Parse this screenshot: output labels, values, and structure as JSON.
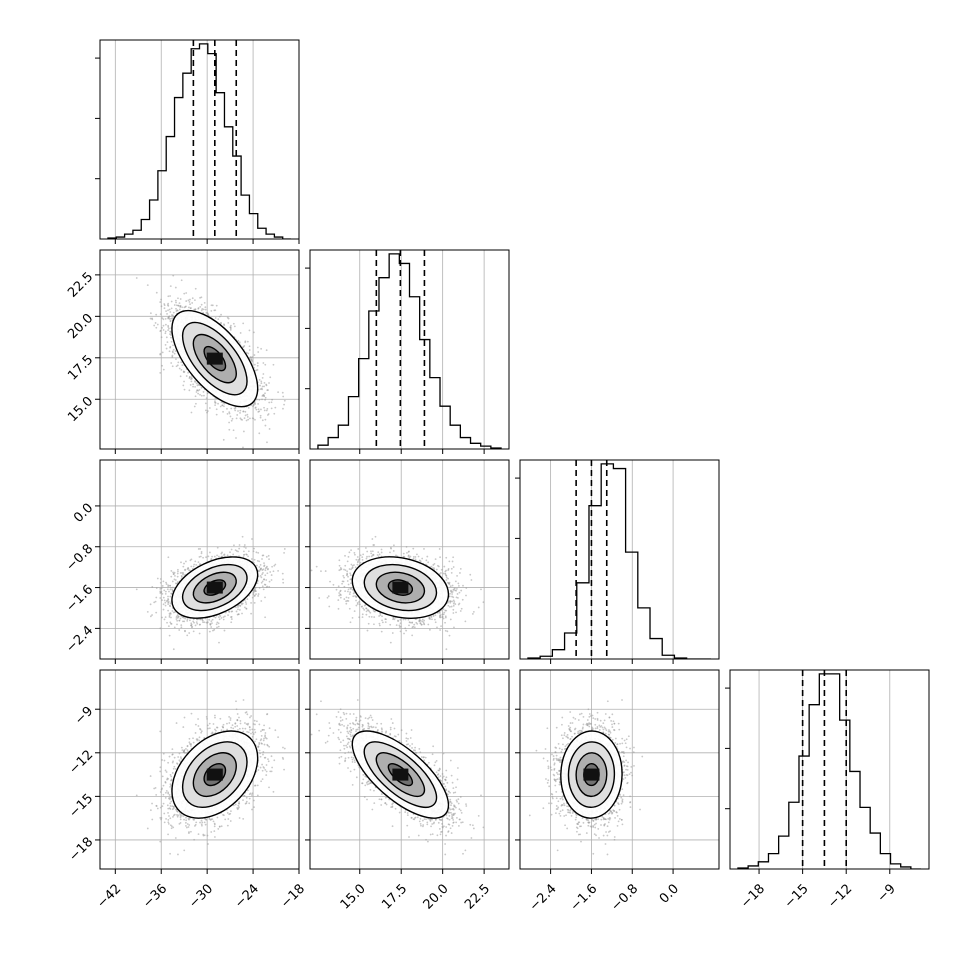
{
  "chart_data": {
    "type": "corner",
    "parameters": [
      {
        "range": [
          -44,
          -18
        ],
        "ticks": [
          "−42",
          "−36",
          "−30",
          "−24",
          "−18"
        ],
        "tick_values": [
          -42,
          -36,
          -30,
          -24,
          -18
        ],
        "quantiles": [
          -31.8,
          -29.0,
          -26.2
        ]
      },
      {
        "range": [
          12.0,
          24.0
        ],
        "ticks": [
          "15.0",
          "17.5",
          "20.0",
          "22.5"
        ],
        "tick_values": [
          15.0,
          17.5,
          20.0,
          22.5
        ],
        "quantiles": [
          16.0,
          17.45,
          18.9
        ]
      },
      {
        "range": [
          -3.0,
          0.9
        ],
        "ticks": [
          "−2.4",
          "−1.6",
          "−0.8",
          "0.0"
        ],
        "tick_values": [
          -2.4,
          -1.6,
          -0.8,
          0.0
        ],
        "quantiles": [
          -1.9,
          -1.6,
          -1.3
        ]
      },
      {
        "range": [
          -20.0,
          -6.3
        ],
        "ticks": [
          "−18",
          "−15",
          "−12",
          "−9"
        ],
        "tick_values": [
          -18,
          -15,
          -12,
          -9
        ],
        "quantiles": [
          -15.0,
          -13.5,
          -12.0
        ]
      }
    ],
    "histograms": [
      {
        "counts": [
          1,
          2,
          5,
          9,
          20,
          40,
          70,
          105,
          145,
          170,
          195,
          200,
          190,
          150,
          115,
          85,
          45,
          26,
          11,
          5,
          2,
          0
        ]
      },
      {
        "counts": [
          4,
          12,
          25,
          55,
          95,
          145,
          180,
          205,
          195,
          160,
          115,
          75,
          45,
          25,
          12,
          6,
          3,
          1
        ]
      },
      {
        "counts": [
          1,
          3,
          10,
          28,
          82,
          165,
          210,
          205,
          115,
          55,
          22,
          4,
          1,
          0,
          0
        ]
      },
      {
        "counts": [
          1,
          3,
          7,
          15,
          32,
          65,
          110,
          160,
          190,
          190,
          145,
          95,
          60,
          35,
          15,
          5,
          2,
          0
        ]
      }
    ],
    "correlations": {
      "1,0": -0.62,
      "2,0": 0.42,
      "2,1": -0.22,
      "3,0": 0.38,
      "3,1": -0.7,
      "3,2": 0.02
    },
    "sample_count": 6000,
    "contour_levels": [
      "0.5-sigma",
      "1-sigma",
      "1.5-sigma",
      "2-sigma"
    ],
    "grid": true,
    "colors": {
      "hist": "#000000",
      "points": "#9a9a9a",
      "contour": "#000000",
      "grid": "#b0b0b0"
    }
  }
}
